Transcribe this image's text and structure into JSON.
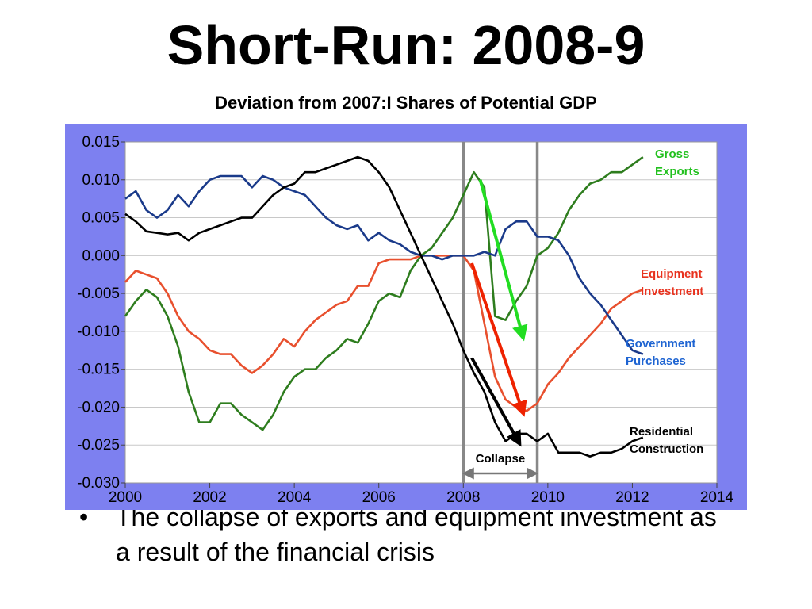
{
  "slide": {
    "title": "Short-Run: 2008-9",
    "bullet_symbol": "•",
    "bullet_text": "The collapse of exports and equipment investment as a result of the financial crisis"
  },
  "chart_data": {
    "type": "line",
    "title": "Deviation from 2007:I Shares of Potential GDP",
    "xlabel": "",
    "ylabel": "",
    "xlim": [
      2000,
      2014
    ],
    "ylim": [
      -0.03,
      0.015
    ],
    "x_ticks": [
      2000,
      2002,
      2004,
      2006,
      2008,
      2010,
      2012,
      2014
    ],
    "x_tick_labels": [
      "2000",
      "2002",
      "2004",
      "2006",
      "2008",
      "2010",
      "2012",
      "2014"
    ],
    "y_ticks": [
      0.015,
      0.01,
      0.005,
      0,
      -0.005,
      -0.01,
      -0.015,
      -0.02,
      -0.025,
      -0.03
    ],
    "y_tick_labels": [
      "0.015",
      "0.010",
      "0.005",
      "0.000",
      "-0.005",
      "-0.010",
      "-0.015",
      "-0.020",
      "-0.025",
      "-0.030"
    ],
    "grid": true,
    "vertical_markers": [
      2008.0,
      2009.75
    ],
    "annotation": {
      "text": "Collapse",
      "x_start": 2008.0,
      "x_end": 2009.75
    },
    "series": [
      {
        "name": "Gross Exports",
        "color": "#2e7d1e",
        "label_color": "#22c01e",
        "x": [
          2000,
          2000.25,
          2000.5,
          2000.75,
          2001,
          2001.25,
          2001.5,
          2001.75,
          2002,
          2002.25,
          2002.5,
          2002.75,
          2003,
          2003.25,
          2003.5,
          2003.75,
          2004,
          2004.25,
          2004.5,
          2004.75,
          2005,
          2005.25,
          2005.5,
          2005.75,
          2006,
          2006.25,
          2006.5,
          2006.75,
          2007,
          2007.25,
          2007.5,
          2007.75,
          2008,
          2008.25,
          2008.5,
          2008.75,
          2009,
          2009.25,
          2009.5,
          2009.75,
          2010,
          2010.25,
          2010.5,
          2010.75,
          2011,
          2011.25,
          2011.5,
          2011.75,
          2012,
          2012.25
        ],
        "y": [
          -0.008,
          -0.006,
          -0.0045,
          -0.0055,
          -0.008,
          -0.012,
          -0.018,
          -0.022,
          -0.022,
          -0.0195,
          -0.0195,
          -0.021,
          -0.022,
          -0.023,
          -0.021,
          -0.018,
          -0.016,
          -0.015,
          -0.015,
          -0.0135,
          -0.0125,
          -0.011,
          -0.0115,
          -0.009,
          -0.006,
          -0.005,
          -0.0055,
          -0.002,
          0.0,
          0.001,
          0.003,
          0.005,
          0.008,
          0.011,
          0.009,
          -0.008,
          -0.0085,
          -0.006,
          -0.004,
          0.0,
          0.001,
          0.003,
          0.006,
          0.008,
          0.0095,
          0.01,
          0.011,
          0.011,
          0.012,
          0.013
        ]
      },
      {
        "name": "Equipment Investment",
        "color": "#e8502e",
        "label_color": "#e8321e",
        "x": [
          2000,
          2000.25,
          2000.5,
          2000.75,
          2001,
          2001.25,
          2001.5,
          2001.75,
          2002,
          2002.25,
          2002.5,
          2002.75,
          2003,
          2003.25,
          2003.5,
          2003.75,
          2004,
          2004.25,
          2004.5,
          2004.75,
          2005,
          2005.25,
          2005.5,
          2005.75,
          2006,
          2006.25,
          2006.5,
          2006.75,
          2007,
          2007.25,
          2007.5,
          2007.75,
          2008,
          2008.25,
          2008.5,
          2008.75,
          2009,
          2009.25,
          2009.5,
          2009.75,
          2010,
          2010.25,
          2010.5,
          2010.75,
          2011,
          2011.25,
          2011.5,
          2011.75,
          2012,
          2012.25
        ],
        "y": [
          -0.0035,
          -0.002,
          -0.0025,
          -0.003,
          -0.005,
          -0.008,
          -0.01,
          -0.011,
          -0.0125,
          -0.013,
          -0.013,
          -0.0145,
          -0.0155,
          -0.0145,
          -0.013,
          -0.011,
          -0.012,
          -0.01,
          -0.0085,
          -0.0075,
          -0.0065,
          -0.006,
          -0.004,
          -0.004,
          -0.001,
          -0.0005,
          -0.0005,
          -0.0005,
          0.0,
          0.0,
          0.0,
          0.0,
          0.0,
          -0.002,
          -0.009,
          -0.016,
          -0.019,
          -0.02,
          -0.0205,
          -0.0195,
          -0.017,
          -0.0155,
          -0.0135,
          -0.012,
          -0.0105,
          -0.009,
          -0.007,
          -0.006,
          -0.005,
          -0.0045
        ]
      },
      {
        "name": "Government Purchases",
        "color": "#1a3a8a",
        "label_color": "#1e64d2",
        "x": [
          2000,
          2000.25,
          2000.5,
          2000.75,
          2001,
          2001.25,
          2001.5,
          2001.75,
          2002,
          2002.25,
          2002.5,
          2002.75,
          2003,
          2003.25,
          2003.5,
          2003.75,
          2004,
          2004.25,
          2004.5,
          2004.75,
          2005,
          2005.25,
          2005.5,
          2005.75,
          2006,
          2006.25,
          2006.5,
          2006.75,
          2007,
          2007.25,
          2007.5,
          2007.75,
          2008,
          2008.25,
          2008.5,
          2008.75,
          2009,
          2009.25,
          2009.5,
          2009.75,
          2010,
          2010.25,
          2010.5,
          2010.75,
          2011,
          2011.25,
          2011.5,
          2011.75,
          2012,
          2012.25
        ],
        "y": [
          0.0075,
          0.0085,
          0.006,
          0.005,
          0.006,
          0.008,
          0.0065,
          0.0085,
          0.01,
          0.0105,
          0.0105,
          0.0105,
          0.009,
          0.0105,
          0.01,
          0.009,
          0.0085,
          0.008,
          0.0065,
          0.005,
          0.004,
          0.0035,
          0.004,
          0.002,
          0.003,
          0.002,
          0.0015,
          0.0005,
          0.0,
          0.0,
          -0.0005,
          0.0,
          0.0,
          0.0,
          0.0005,
          0.0,
          0.0035,
          0.0045,
          0.0045,
          0.0025,
          0.0025,
          0.002,
          0.0,
          -0.003,
          -0.005,
          -0.0065,
          -0.0085,
          -0.0105,
          -0.0125,
          -0.013
        ]
      },
      {
        "name": "Residential Construction",
        "color": "#000000",
        "label_color": "#000000",
        "x": [
          2000,
          2000.25,
          2000.5,
          2000.75,
          2001,
          2001.25,
          2001.5,
          2001.75,
          2002,
          2002.25,
          2002.5,
          2002.75,
          2003,
          2003.25,
          2003.5,
          2003.75,
          2004,
          2004.25,
          2004.5,
          2004.75,
          2005,
          2005.25,
          2005.5,
          2005.75,
          2006,
          2006.25,
          2006.5,
          2006.75,
          2007,
          2007.25,
          2007.5,
          2007.75,
          2008,
          2008.25,
          2008.5,
          2008.75,
          2009,
          2009.25,
          2009.5,
          2009.75,
          2010,
          2010.25,
          2010.5,
          2010.75,
          2011,
          2011.25,
          2011.5,
          2011.75,
          2012,
          2012.25
        ],
        "y": [
          0.0055,
          0.0045,
          0.0032,
          0.003,
          0.0028,
          0.003,
          0.002,
          0.003,
          0.0035,
          0.004,
          0.0045,
          0.005,
          0.005,
          0.0065,
          0.008,
          0.009,
          0.0095,
          0.011,
          0.011,
          0.0115,
          0.012,
          0.0125,
          0.013,
          0.0125,
          0.011,
          0.009,
          0.006,
          0.003,
          0.0,
          -0.003,
          -0.006,
          -0.009,
          -0.0125,
          -0.0155,
          -0.018,
          -0.022,
          -0.0245,
          -0.0235,
          -0.0235,
          -0.0245,
          -0.0235,
          -0.026,
          -0.026,
          -0.026,
          -0.0265,
          -0.026,
          -0.026,
          -0.0255,
          -0.0245,
          -0.024
        ]
      }
    ],
    "arrows": [
      {
        "color": "#22dd22",
        "from": [
          2008.4,
          0.01
        ],
        "to": [
          2009.4,
          -0.0105
        ]
      },
      {
        "color": "#ee2200",
        "from": [
          2008.2,
          -0.001
        ],
        "to": [
          2009.4,
          -0.0205
        ]
      },
      {
        "color": "#000000",
        "from": [
          2008.2,
          -0.0135
        ],
        "to": [
          2009.3,
          -0.0245
        ]
      }
    ]
  }
}
